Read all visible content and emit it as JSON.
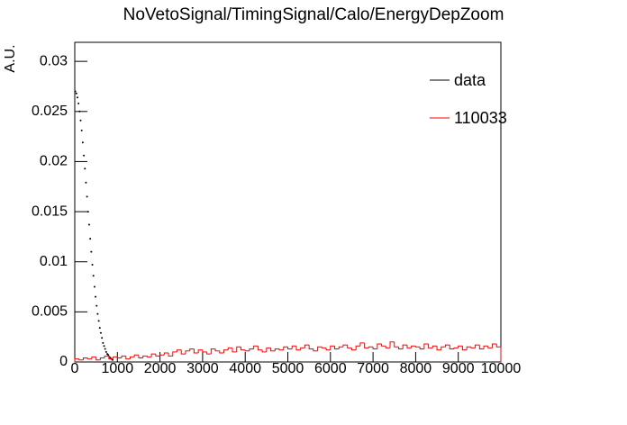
{
  "chart_data": {
    "type": "histogram",
    "title": "NoVetoSignal/TimingSignal/Calo/EnergyDepZoom",
    "y_label": "A.U.",
    "xlim": [
      0,
      10000
    ],
    "ylim": [
      0,
      0.0319
    ],
    "xticks": [
      0,
      1000,
      2000,
      3000,
      4000,
      5000,
      6000,
      7000,
      8000,
      9000,
      10000
    ],
    "yticks": [
      0,
      0.005,
      0.01,
      0.015,
      0.02,
      0.025,
      0.03
    ],
    "legend": "top-right",
    "series": [
      {
        "name": "data",
        "color": "#000000",
        "x": [
          12.5,
          37.5,
          62.5,
          87.5,
          112.5,
          137.5,
          162.5,
          187.5,
          212.5,
          237.5,
          262.5,
          287.5,
          312.5,
          337.5,
          362.5,
          387.5,
          412.5,
          437.5,
          462.5,
          487.5,
          512.5,
          537.5,
          562.5,
          587.5,
          612.5,
          637.5,
          662.5,
          687.5,
          712.5,
          737.5,
          762.5,
          787.5,
          812.5,
          837.5,
          862.5,
          887.5
        ],
        "values": [
          0.027,
          0.0268,
          0.0264,
          0.0258,
          0.025,
          0.0241,
          0.0231,
          0.0219,
          0.0206,
          0.0193,
          0.0179,
          0.0165,
          0.015,
          0.0137,
          0.0123,
          0.011,
          0.0097,
          0.0086,
          0.0075,
          0.0065,
          0.0056,
          0.0048,
          0.0041,
          0.0034,
          0.0029,
          0.0024,
          0.0019,
          0.0016,
          0.0013,
          0.001,
          0.0008,
          0.0007,
          0.0005,
          0.0004,
          0.0003,
          0.0002
        ]
      },
      {
        "name": "110033",
        "color": "#ff0000",
        "bins": [
          0,
          100,
          200,
          300,
          400,
          500,
          600,
          700,
          800,
          900,
          1000,
          1100,
          1200,
          1300,
          1400,
          1500,
          1600,
          1700,
          1800,
          1900,
          2000,
          2100,
          2200,
          2300,
          2400,
          2500,
          2600,
          2700,
          2800,
          2900,
          3000,
          3100,
          3200,
          3300,
          3400,
          3500,
          3600,
          3700,
          3800,
          3900,
          4000,
          4100,
          4200,
          4300,
          4400,
          4500,
          4600,
          4700,
          4800,
          4900,
          5000,
          5100,
          5200,
          5300,
          5400,
          5500,
          5600,
          5700,
          5800,
          5900,
          6000,
          6100,
          6200,
          6300,
          6400,
          6500,
          6600,
          6700,
          6800,
          6900,
          7000,
          7100,
          7200,
          7300,
          7400,
          7500,
          7600,
          7700,
          7800,
          7900,
          8000,
          8100,
          8200,
          8300,
          8400,
          8500,
          8600,
          8700,
          8800,
          8900,
          9000,
          9100,
          9200,
          9300,
          9400,
          9500,
          9600,
          9700,
          9800,
          9900,
          10000
        ],
        "values": [
          0.0003,
          0.0002,
          0.0004,
          0.0003,
          0.0005,
          0.0002,
          0.0004,
          0.0006,
          0.0003,
          0.0005,
          0.0004,
          0.0006,
          0.0003,
          0.0005,
          0.0007,
          0.0004,
          0.0006,
          0.0005,
          0.0008,
          0.0006,
          0.0007,
          0.0009,
          0.0006,
          0.001,
          0.0012,
          0.0008,
          0.0011,
          0.0013,
          0.0009,
          0.0012,
          0.001,
          0.0008,
          0.0013,
          0.0011,
          0.0009,
          0.0012,
          0.0014,
          0.001,
          0.0015,
          0.0012,
          0.0011,
          0.0013,
          0.0016,
          0.0012,
          0.001,
          0.0014,
          0.0011,
          0.0013,
          0.0012,
          0.0015,
          0.0013,
          0.0016,
          0.0012,
          0.0014,
          0.0017,
          0.0013,
          0.0011,
          0.0015,
          0.0014,
          0.0012,
          0.0016,
          0.0013,
          0.0015,
          0.0017,
          0.0014,
          0.0012,
          0.0016,
          0.0019,
          0.0014,
          0.0015,
          0.0013,
          0.0018,
          0.0016,
          0.0014,
          0.002,
          0.0015,
          0.0013,
          0.0017,
          0.0014,
          0.0016,
          0.0015,
          0.0013,
          0.0018,
          0.0014,
          0.0016,
          0.0012,
          0.0015,
          0.0017,
          0.0013,
          0.0014,
          0.0016,
          0.0012,
          0.0015,
          0.0014,
          0.0017,
          0.0013,
          0.0016,
          0.0014,
          0.0018,
          0.0015
        ]
      }
    ]
  }
}
